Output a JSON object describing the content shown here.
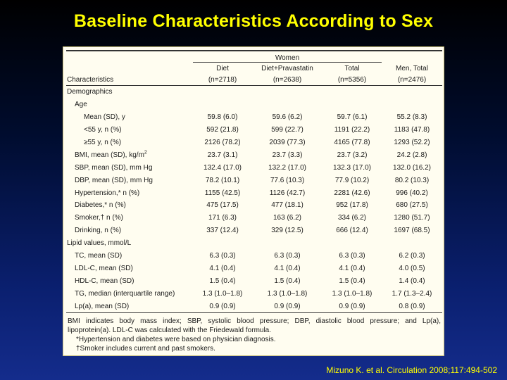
{
  "title": "Baseline Characteristics According to Sex",
  "citation": "Mizuno K. et al. Circulation 2008;117:494-502",
  "table": {
    "group_header": "Women",
    "columns": {
      "characteristics": "Characteristics",
      "diet": [
        "Diet",
        "(n=2718)"
      ],
      "diet_prava": [
        "Diet+Pravastatin",
        "(n=2638)"
      ],
      "total": [
        "Total",
        "(n=5356)"
      ],
      "men": [
        "Men, Total",
        "(n=2476)"
      ]
    },
    "rows": [
      {
        "label": "Demographics",
        "level": 0,
        "values": []
      },
      {
        "label": "Age",
        "level": 1,
        "values": []
      },
      {
        "label": "Mean (SD), y",
        "level": 2,
        "values": [
          "59.8 (6.0)",
          "59.6 (6.2)",
          "59.7 (6.1)",
          "55.2 (8.3)"
        ]
      },
      {
        "label": "<55 y, n (%)",
        "level": 2,
        "values": [
          "592 (21.8)",
          "599 (22.7)",
          "1191 (22.2)",
          "1183 (47.8)"
        ]
      },
      {
        "label": "≥55 y, n (%)",
        "level": 2,
        "values": [
          "2126 (78.2)",
          "2039 (77.3)",
          "4165 (77.8)",
          "1293 (52.2)"
        ]
      },
      {
        "label": "BMI, mean (SD), kg/m",
        "sup": "2",
        "level": 1,
        "values": [
          "23.7 (3.1)",
          "23.7 (3.3)",
          "23.7 (3.2)",
          "24.2 (2.8)"
        ]
      },
      {
        "label": "SBP, mean (SD), mm Hg",
        "level": 1,
        "values": [
          "132.4 (17.0)",
          "132.2 (17.0)",
          "132.3 (17.0)",
          "132.0 (16.2)"
        ]
      },
      {
        "label": "DBP, mean (SD), mm Hg",
        "level": 1,
        "values": [
          "78.2 (10.1)",
          "77.6 (10.3)",
          "77.9 (10.2)",
          "80.2 (10.3)"
        ]
      },
      {
        "label": "Hypertension,* n (%)",
        "level": 1,
        "values": [
          "1155 (42.5)",
          "1126 (42.7)",
          "2281 (42.6)",
          "996 (40.2)"
        ]
      },
      {
        "label": "Diabetes,* n (%)",
        "level": 1,
        "values": [
          "475 (17.5)",
          "477 (18.1)",
          "952 (17.8)",
          "680 (27.5)"
        ]
      },
      {
        "label": "Smoker,† n (%)",
        "level": 1,
        "values": [
          "171 (6.3)",
          "163 (6.2)",
          "334 (6.2)",
          "1280 (51.7)"
        ]
      },
      {
        "label": "Drinking, n (%)",
        "level": 1,
        "values": [
          "337 (12.4)",
          "329 (12.5)",
          "666 (12.4)",
          "1697 (68.5)"
        ]
      },
      {
        "label": "Lipid values, mmol/L",
        "level": 0,
        "values": []
      },
      {
        "label": "TC, mean (SD)",
        "level": 1,
        "values": [
          "6.3 (0.3)",
          "6.3 (0.3)",
          "6.3 (0.3)",
          "6.2 (0.3)"
        ]
      },
      {
        "label": "LDL-C, mean (SD)",
        "level": 1,
        "values": [
          "4.1 (0.4)",
          "4.1 (0.4)",
          "4.1 (0.4)",
          "4.0 (0.5)"
        ]
      },
      {
        "label": "HDL-C, mean (SD)",
        "level": 1,
        "values": [
          "1.5 (0.4)",
          "1.5 (0.4)",
          "1.5 (0.4)",
          "1.4 (0.4)"
        ]
      },
      {
        "label": "TG, median (interquartile range)",
        "level": 1,
        "values": [
          "1.3 (1.0–1.8)",
          "1.3 (1.0–1.8)",
          "1.3 (1.0–1.8)",
          "1.7 (1.3–2.4)"
        ]
      },
      {
        "label": "Lp(a), mean (SD)",
        "level": 1,
        "values": [
          "0.9 (0.9)",
          "0.9 (0.9)",
          "0.9 (0.9)",
          "0.8 (0.9)"
        ]
      }
    ],
    "footnotes": {
      "line1": "BMI indicates body mass index; SBP, systolic blood pressure; DBP, diastolic blood pressure; and Lp(a),",
      "line2": "lipoprotein(a). LDL-C was calculated with the Friedewald formula.",
      "line3": "*Hypertension and diabetes were based on physician diagnosis.",
      "line4": "†Smoker includes current and past smokers."
    }
  },
  "colors": {
    "title": "#ffff00",
    "citation": "#ffff00",
    "table_background": "#fffdf0"
  }
}
